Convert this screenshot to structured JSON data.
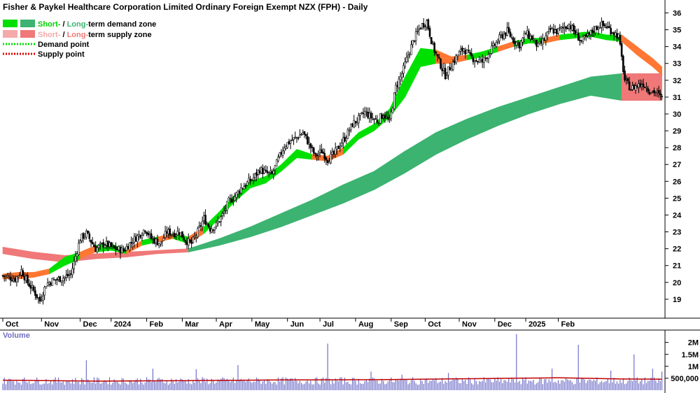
{
  "chart_data": {
    "type": "line",
    "title": "Fisher & Paykel Healthcare Corporation Limited Ordinary Foreign Exempt NZX (FPH) - Daily",
    "legend": {
      "placement": "top-left",
      "items": [
        {
          "label_parts": [
            "Short-",
            " / ",
            "Long-",
            "term demand zone"
          ],
          "colors": [
            "#00e000",
            "#3cb371"
          ]
        },
        {
          "label_parts": [
            "Short-",
            " / ",
            "Long-",
            "term supply zone"
          ],
          "colors": [
            "#f4aaaa",
            "#f07878"
          ]
        },
        {
          "label": "Demand point",
          "color": "#00e000",
          "style": "dotted"
        },
        {
          "label": "Supply point",
          "color": "#e00000",
          "style": "dotted"
        }
      ]
    },
    "price_axis": {
      "ylim": [
        18,
        36.6
      ],
      "ticks": [
        19,
        20,
        21,
        22,
        23,
        24,
        25,
        26,
        27,
        28,
        29,
        30,
        31,
        32,
        33,
        34,
        35,
        36
      ],
      "side": "right"
    },
    "x_axis": {
      "labels": [
        {
          "label": "Oct",
          "day": 0
        },
        {
          "label": "Nov",
          "day": 25
        },
        {
          "label": "Dec",
          "day": 50
        },
        {
          "label": "2024",
          "day": 70
        },
        {
          "label": "Feb",
          "day": 93
        },
        {
          "label": "Mar",
          "day": 116
        },
        {
          "label": "Apr",
          "day": 138
        },
        {
          "label": "May",
          "day": 161
        },
        {
          "label": "Jun",
          "day": 184
        },
        {
          "label": "Jul",
          "day": 205
        },
        {
          "label": "Aug",
          "day": 228
        },
        {
          "label": "Sep",
          "day": 251
        },
        {
          "label": "Oct",
          "day": 273
        },
        {
          "label": "Nov",
          "day": 295
        },
        {
          "label": "Dec",
          "day": 318
        },
        {
          "label": "2025",
          "day": 338
        },
        {
          "label": "Feb",
          "day": 359
        }
      ],
      "total_days": 408
    },
    "price_path": [
      [
        0,
        20.4
      ],
      [
        8,
        20.2
      ],
      [
        12,
        20.7
      ],
      [
        16,
        20.0
      ],
      [
        20,
        19.5
      ],
      [
        24,
        18.9
      ],
      [
        28,
        19.9
      ],
      [
        32,
        20.1
      ],
      [
        36,
        20.2
      ],
      [
        40,
        20.3
      ],
      [
        44,
        20.5
      ],
      [
        50,
        22.6
      ],
      [
        54,
        22.9
      ],
      [
        60,
        22.0
      ],
      [
        66,
        22.3
      ],
      [
        72,
        22.0
      ],
      [
        78,
        21.9
      ],
      [
        84,
        22.5
      ],
      [
        88,
        22.8
      ],
      [
        92,
        23.2
      ],
      [
        96,
        22.6
      ],
      [
        102,
        22.3
      ],
      [
        106,
        23.0
      ],
      [
        110,
        22.9
      ],
      [
        114,
        23.0
      ],
      [
        118,
        22.5
      ],
      [
        122,
        22.3
      ],
      [
        126,
        23.0
      ],
      [
        130,
        23.8
      ],
      [
        134,
        23.2
      ],
      [
        138,
        23.4
      ],
      [
        142,
        24.0
      ],
      [
        146,
        24.8
      ],
      [
        150,
        25.1
      ],
      [
        154,
        25.6
      ],
      [
        158,
        25.9
      ],
      [
        162,
        26.2
      ],
      [
        166,
        26.7
      ],
      [
        170,
        26.5
      ],
      [
        174,
        26.4
      ],
      [
        178,
        27.3
      ],
      [
        182,
        28.1
      ],
      [
        186,
        28.4
      ],
      [
        190,
        28.6
      ],
      [
        194,
        28.9
      ],
      [
        198,
        28.2
      ],
      [
        202,
        27.5
      ],
      [
        206,
        27.8
      ],
      [
        210,
        27.3
      ],
      [
        214,
        27.6
      ],
      [
        218,
        28.2
      ],
      [
        222,
        28.7
      ],
      [
        226,
        29.4
      ],
      [
        230,
        29.7
      ],
      [
        234,
        30.1
      ],
      [
        238,
        29.8
      ],
      [
        242,
        29.6
      ],
      [
        246,
        30.0
      ],
      [
        250,
        29.5
      ],
      [
        254,
        31.6
      ],
      [
        258,
        32.4
      ],
      [
        262,
        33.5
      ],
      [
        266,
        34.5
      ],
      [
        270,
        35.2
      ],
      [
        274,
        35.5
      ],
      [
        278,
        34.0
      ],
      [
        282,
        33.1
      ],
      [
        286,
        32.3
      ],
      [
        290,
        32.9
      ],
      [
        294,
        33.5
      ],
      [
        298,
        33.9
      ],
      [
        302,
        33.4
      ],
      [
        306,
        33.2
      ],
      [
        310,
        33.1
      ],
      [
        314,
        33.6
      ],
      [
        318,
        34.1
      ],
      [
        322,
        34.6
      ],
      [
        326,
        34.9
      ],
      [
        330,
        34.4
      ],
      [
        334,
        34.1
      ],
      [
        338,
        34.8
      ],
      [
        342,
        34.5
      ],
      [
        346,
        34.0
      ],
      [
        350,
        34.4
      ],
      [
        354,
        35.0
      ],
      [
        358,
        34.9
      ],
      [
        362,
        35.1
      ],
      [
        366,
        35.3
      ],
      [
        370,
        34.8
      ],
      [
        374,
        34.3
      ],
      [
        378,
        34.6
      ],
      [
        382,
        35.0
      ],
      [
        386,
        35.3
      ],
      [
        390,
        35.2
      ],
      [
        394,
        34.9
      ],
      [
        398,
        34.6
      ],
      [
        402,
        32.0
      ],
      [
        406,
        31.5
      ],
      [
        410,
        31.7
      ],
      [
        414,
        31.8
      ],
      [
        418,
        31.4
      ],
      [
        422,
        31.3
      ],
      [
        426,
        30.9
      ]
    ],
    "short_term_band": [
      [
        0,
        20.2,
        20.5,
        "supply"
      ],
      [
        10,
        20.2,
        20.6,
        "supply"
      ],
      [
        20,
        20.3,
        20.6,
        "supply"
      ],
      [
        30,
        20.5,
        20.8,
        "demand"
      ],
      [
        40,
        21.0,
        21.5,
        "demand"
      ],
      [
        50,
        21.4,
        21.8,
        "supply"
      ],
      [
        60,
        21.8,
        22.2,
        "demand"
      ],
      [
        70,
        21.9,
        22.3,
        "demand"
      ],
      [
        80,
        21.7,
        21.9,
        "supply"
      ],
      [
        90,
        22.2,
        22.5,
        "demand"
      ],
      [
        100,
        22.4,
        22.7,
        "supply"
      ],
      [
        110,
        22.6,
        22.9,
        "demand"
      ],
      [
        120,
        22.3,
        22.7,
        "supply"
      ],
      [
        130,
        22.9,
        23.3,
        "demand"
      ],
      [
        140,
        23.8,
        24.2,
        "demand"
      ],
      [
        150,
        24.8,
        25.2,
        "demand"
      ],
      [
        160,
        25.6,
        26.0,
        "demand"
      ],
      [
        170,
        25.9,
        26.3,
        "demand"
      ],
      [
        180,
        26.6,
        27.0,
        "demand"
      ],
      [
        190,
        27.4,
        27.9,
        "demand"
      ],
      [
        200,
        27.3,
        27.6,
        "supply"
      ],
      [
        210,
        27.2,
        27.5,
        "supply"
      ],
      [
        220,
        27.6,
        28.0,
        "demand"
      ],
      [
        230,
        28.5,
        28.9,
        "demand"
      ],
      [
        240,
        29.0,
        29.4,
        "demand"
      ],
      [
        250,
        29.8,
        30.3,
        "demand"
      ],
      [
        260,
        31.0,
        32.2,
        "demand"
      ],
      [
        270,
        32.8,
        33.9,
        "demand"
      ],
      [
        280,
        33.0,
        33.8,
        "supply"
      ],
      [
        290,
        33.0,
        33.4,
        "supply"
      ],
      [
        300,
        33.2,
        33.5,
        "demand"
      ],
      [
        310,
        33.4,
        33.7,
        "demand"
      ],
      [
        320,
        33.7,
        34.0,
        "supply"
      ],
      [
        330,
        34.0,
        34.3,
        "demand"
      ],
      [
        340,
        34.2,
        34.5,
        "demand"
      ],
      [
        350,
        34.2,
        34.5,
        "supply"
      ],
      [
        360,
        34.4,
        34.7,
        "demand"
      ],
      [
        370,
        34.5,
        34.8,
        "demand"
      ],
      [
        380,
        34.6,
        34.9,
        "demand"
      ],
      [
        390,
        34.4,
        34.7,
        "demand"
      ],
      [
        400,
        34.3,
        34.7,
        "supply"
      ],
      [
        410,
        33.5,
        34.0,
        "supply"
      ],
      [
        420,
        32.8,
        33.3,
        "supply"
      ],
      [
        426,
        32.3,
        32.8,
        "supply"
      ]
    ],
    "long_term_band": [
      [
        0,
        21.7,
        22.1,
        "supply"
      ],
      [
        20,
        21.4,
        21.8,
        "supply"
      ],
      [
        40,
        21.2,
        21.6,
        "supply"
      ],
      [
        60,
        21.4,
        21.7,
        "supply"
      ],
      [
        80,
        21.5,
        21.8,
        "supply"
      ],
      [
        100,
        21.7,
        21.9,
        "supply"
      ],
      [
        120,
        21.8,
        22.0,
        "demand"
      ],
      [
        140,
        22.2,
        22.6,
        "demand"
      ],
      [
        160,
        22.7,
        23.3,
        "demand"
      ],
      [
        180,
        23.3,
        24.1,
        "demand"
      ],
      [
        200,
        24.0,
        24.9,
        "demand"
      ],
      [
        220,
        24.7,
        25.8,
        "demand"
      ],
      [
        240,
        25.5,
        26.6,
        "demand"
      ],
      [
        260,
        26.5,
        27.8,
        "demand"
      ],
      [
        280,
        27.6,
        28.9,
        "demand"
      ],
      [
        300,
        28.5,
        29.7,
        "demand"
      ],
      [
        320,
        29.3,
        30.4,
        "demand"
      ],
      [
        340,
        30.0,
        31.0,
        "demand"
      ],
      [
        360,
        30.6,
        31.6,
        "demand"
      ],
      [
        380,
        31.1,
        32.2,
        "demand"
      ],
      [
        400,
        30.8,
        32.4,
        "supply"
      ],
      [
        420,
        30.8,
        32.4,
        "supply"
      ],
      [
        426,
        30.8,
        32.4,
        "supply"
      ]
    ],
    "volume": {
      "label": "Volume",
      "ticks": [
        {
          "label": "500,000",
          "value": 500000
        },
        {
          "label": "1M",
          "value": 1000000
        },
        {
          "label": "1.5M",
          "value": 1500000
        },
        {
          "label": "2M",
          "value": 2000000
        }
      ],
      "ylim": [
        0,
        2400000
      ],
      "base_level": 420000,
      "spikes": [
        [
          54,
          1250000
        ],
        [
          97,
          900000
        ],
        [
          125,
          880000
        ],
        [
          152,
          1050000
        ],
        [
          210,
          1950000
        ],
        [
          238,
          780000
        ],
        [
          258,
          650000
        ],
        [
          288,
          720000
        ],
        [
          332,
          2350000
        ],
        [
          355,
          900000
        ],
        [
          372,
          1900000
        ],
        [
          393,
          820000
        ],
        [
          408,
          1500000
        ],
        [
          420,
          900000
        ],
        [
          426,
          780000
        ]
      ],
      "average": [
        [
          0,
          420000
        ],
        [
          60,
          380000
        ],
        [
          120,
          400000
        ],
        [
          180,
          430000
        ],
        [
          240,
          440000
        ],
        [
          300,
          480000
        ],
        [
          360,
          520000
        ],
        [
          400,
          470000
        ],
        [
          426,
          460000
        ]
      ]
    }
  }
}
